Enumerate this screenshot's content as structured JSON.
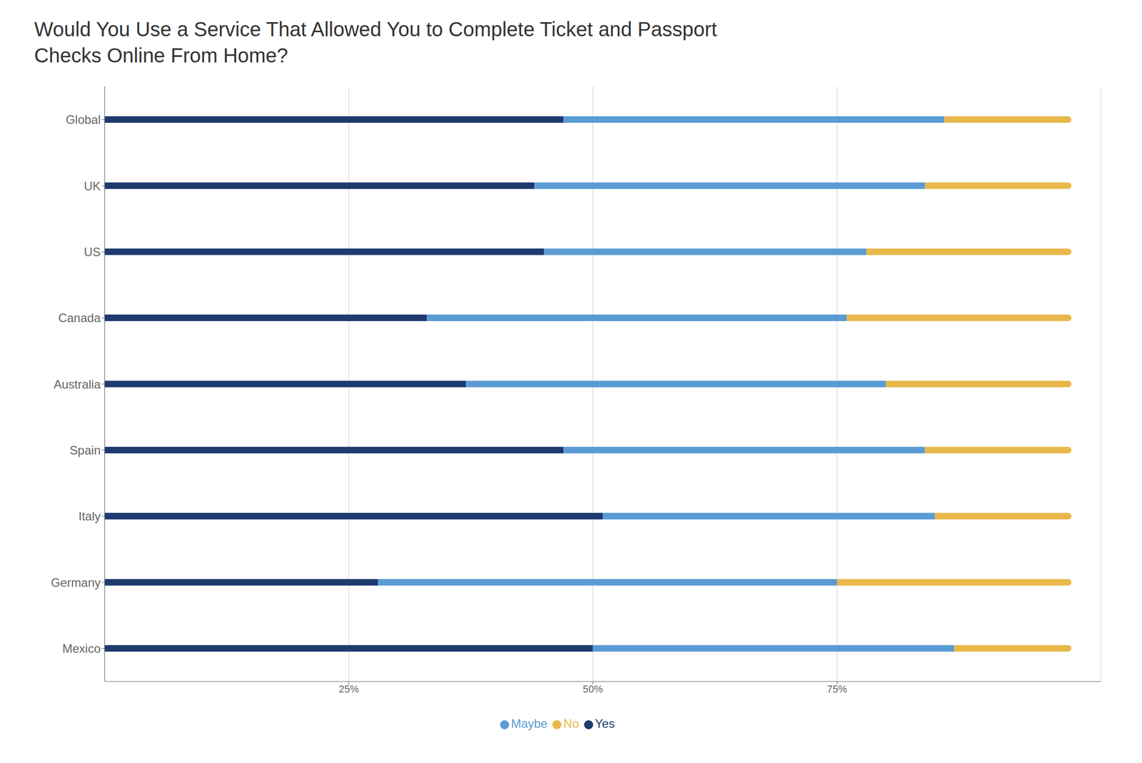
{
  "chart_data": {
    "type": "bar",
    "orientation": "horizontal",
    "stacked": true,
    "grid": true,
    "legend": "bottom",
    "title": "Would You Use a Service That Allowed You to Complete Ticket and Passport Checks Online From Home?",
    "categories": [
      "Global",
      "UK",
      "US",
      "Canada",
      "Australia",
      "Spain",
      "Italy",
      "Germany",
      "Mexico"
    ],
    "series": [
      {
        "name": "Yes",
        "color": "#1e3a6e",
        "values": [
          47,
          44,
          45,
          33,
          37,
          47,
          51,
          28,
          50
        ]
      },
      {
        "name": "Maybe",
        "color": "#5b9bd5",
        "values": [
          39,
          40,
          33,
          43,
          43,
          37,
          34,
          47,
          37
        ]
      },
      {
        "name": "No",
        "color": "#e8b84b",
        "values": [
          13,
          15,
          21,
          23,
          19,
          15,
          14,
          24,
          12
        ]
      }
    ],
    "xlim": [
      0,
      102
    ],
    "xticks": [
      {
        "value": 25,
        "label": "25%"
      },
      {
        "value": 50,
        "label": "50%"
      },
      {
        "value": 75,
        "label": "75%"
      }
    ]
  }
}
